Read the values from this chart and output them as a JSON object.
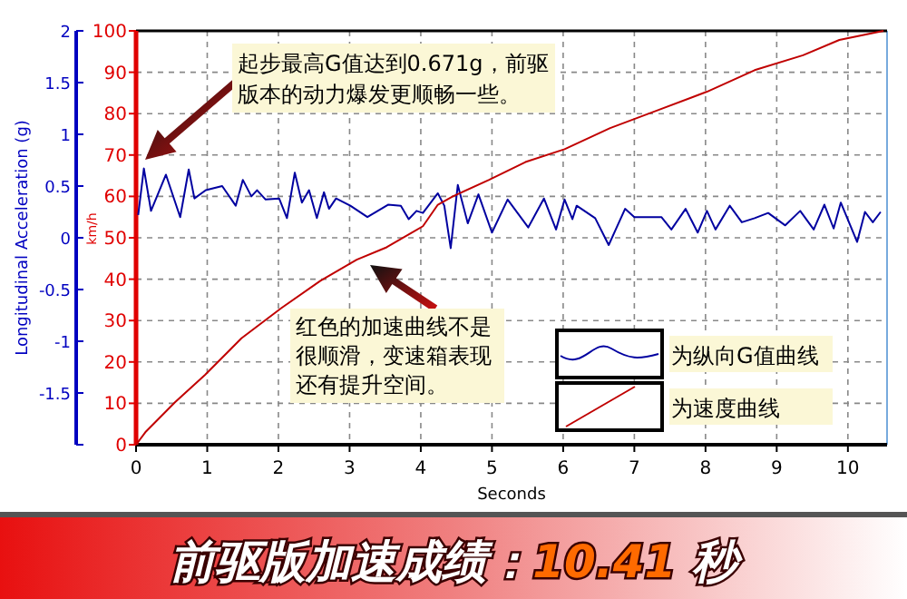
{
  "chart_data": {
    "type": "line",
    "title": "前驱版加速成绩：10.41 秒",
    "xlabel": "Seconds",
    "ylabel": "Longitudinal Acceleration (g)",
    "y2label": "km/h",
    "xlim": [
      0,
      10.55
    ],
    "xticks": [
      0,
      1,
      2,
      3,
      4,
      5,
      6,
      7,
      8,
      9,
      10
    ],
    "ylim": [
      -2,
      2
    ],
    "yticks": [
      {
        "value": -2,
        "label": null
      },
      -1.5,
      -1,
      -0.5,
      0,
      0.5,
      1,
      1.5,
      2
    ],
    "y2lim": [
      0,
      100
    ],
    "y2ticks": [
      0,
      10,
      20,
      30,
      40,
      50,
      60,
      70,
      80,
      90,
      100
    ],
    "grid": true,
    "legend": "bottom right",
    "marker": "none",
    "line_style": "solid",
    "annotations": [
      "起步最高G值达到0.671g，前驱版本的动力爆发更顺畅一些。",
      "红色的加速曲线不是很顺滑，变速箱表现还有提升空间。"
    ],
    "series": [
      {
        "name": "为纵向G值曲线",
        "color": "#0000a0",
        "axis": "y",
        "x": [
          0.03,
          0.11,
          0.21,
          0.42,
          0.62,
          0.74,
          0.82,
          0.98,
          1.21,
          1.4,
          1.5,
          1.62,
          1.7,
          1.82,
          2.01,
          2.12,
          2.23,
          2.33,
          2.43,
          2.54,
          2.64,
          2.71,
          2.81,
          3.01,
          3.25,
          3.54,
          3.72,
          3.83,
          3.94,
          4.03,
          4.24,
          4.33,
          4.42,
          4.52,
          4.66,
          4.81,
          5.0,
          5.22,
          5.51,
          5.73,
          5.9,
          6.02,
          6.13,
          6.19,
          6.45,
          6.64,
          6.87,
          7.0,
          7.38,
          7.52,
          7.72,
          7.89,
          8.02,
          8.14,
          8.34,
          8.51,
          8.69,
          8.88,
          9.12,
          9.33,
          9.52,
          9.67,
          9.8,
          9.9,
          10.13,
          10.24,
          10.35,
          10.46
        ],
        "values": [
          0.22,
          0.67,
          0.26,
          0.61,
          0.2,
          0.66,
          0.38,
          0.46,
          0.5,
          0.31,
          0.56,
          0.4,
          0.46,
          0.37,
          0.38,
          0.19,
          0.63,
          0.34,
          0.46,
          0.19,
          0.44,
          0.28,
          0.38,
          0.31,
          0.2,
          0.32,
          0.31,
          0.18,
          0.26,
          0.24,
          0.43,
          0.31,
          -0.1,
          0.51,
          0.14,
          0.42,
          0.05,
          0.37,
          0.1,
          0.38,
          0.08,
          0.37,
          0.18,
          0.31,
          0.19,
          -0.07,
          0.28,
          0.2,
          0.2,
          0.08,
          0.28,
          0.05,
          0.26,
          0.08,
          0.31,
          0.15,
          0.19,
          0.24,
          0.12,
          0.26,
          0.08,
          0.32,
          0.09,
          0.34,
          -0.04,
          0.25,
          0.15,
          0.25
        ]
      },
      {
        "name": "为速度曲线",
        "color": "#c00000",
        "axis": "y2",
        "x": [
          0,
          0.13,
          0.55,
          0.97,
          1.48,
          2.04,
          2.59,
          3.1,
          3.52,
          4.03,
          4.24,
          4.45,
          4.96,
          5.47,
          6.02,
          6.66,
          7.34,
          8.02,
          8.69,
          9.37,
          9.88,
          10.5
        ],
        "values": [
          0,
          3,
          10.3,
          16.9,
          25.7,
          33,
          39.6,
          44.7,
          47.7,
          52.8,
          58,
          60,
          64,
          68.3,
          71.4,
          76.5,
          80.9,
          85.3,
          90.5,
          94.1,
          97.8,
          100
        ]
      }
    ]
  }
}
